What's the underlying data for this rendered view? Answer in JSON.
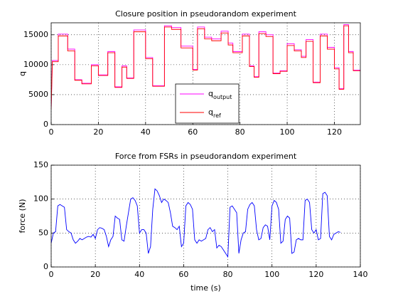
{
  "chart_data": [
    {
      "type": "line",
      "title": "Closure position in pseudorandom experiment",
      "ylabel": "q",
      "x": [
        0,
        0.5,
        3,
        3,
        7,
        7,
        10,
        10,
        13,
        13,
        17,
        17,
        20,
        20,
        24,
        24,
        27,
        27,
        30,
        30,
        32,
        32,
        35,
        35,
        40,
        40,
        43,
        43,
        48,
        48,
        51,
        51,
        55,
        55,
        60,
        60,
        62,
        62,
        65,
        65,
        68,
        68,
        72,
        72,
        75,
        75,
        77,
        77,
        81,
        81,
        84,
        84,
        86,
        86,
        88,
        88,
        91,
        91,
        94,
        94,
        97,
        97,
        100,
        100,
        103,
        103,
        106,
        106,
        108,
        108,
        111,
        111,
        114,
        114,
        117,
        117,
        120,
        120,
        122,
        122,
        124,
        124,
        126,
        126,
        128,
        128,
        131
      ],
      "series": [
        {
          "name": "q",
          "subscript": "output",
          "color": "#ff00ff",
          "values": [
            2500,
            10700,
            10700,
            15100,
            15100,
            12600,
            12600,
            7500,
            7500,
            6900,
            6900,
            10000,
            10000,
            8300,
            8300,
            12200,
            12200,
            6300,
            6300,
            9800,
            9800,
            7800,
            7800,
            15800,
            15800,
            11200,
            11200,
            6500,
            6500,
            16500,
            16500,
            16200,
            16200,
            13100,
            13100,
            9200,
            9200,
            16300,
            16300,
            14600,
            14600,
            14300,
            14300,
            15600,
            15600,
            13600,
            13600,
            12200,
            12200,
            15100,
            15100,
            9800,
            9800,
            8000,
            8000,
            15500,
            15500,
            15000,
            15000,
            8600,
            8600,
            9000,
            9000,
            13500,
            13500,
            12500,
            12500,
            11400,
            11400,
            14200,
            14200,
            7100,
            7100,
            15100,
            15100,
            12900,
            12900,
            9500,
            9500,
            6000,
            6000,
            16700,
            16700,
            12200,
            12200,
            9100,
            9100
          ]
        },
        {
          "name": "q",
          "subscript": "ref",
          "color": "#ff0000",
          "values": [
            2500,
            10500,
            10500,
            14800,
            14800,
            12300,
            12300,
            7400,
            7400,
            6800,
            6800,
            9800,
            9800,
            8200,
            8200,
            12000,
            12000,
            6200,
            6200,
            9600,
            9600,
            7700,
            7700,
            15500,
            15500,
            11000,
            11000,
            6400,
            6400,
            16300,
            16300,
            15900,
            15900,
            12800,
            12800,
            9100,
            9100,
            16000,
            16000,
            14300,
            14300,
            14000,
            14000,
            15300,
            15300,
            13300,
            13300,
            12000,
            12000,
            14800,
            14800,
            9700,
            9700,
            7900,
            7900,
            15200,
            15200,
            14700,
            14700,
            8500,
            8500,
            8900,
            8900,
            13200,
            13200,
            12300,
            12300,
            11200,
            11200,
            13900,
            13900,
            7000,
            7000,
            14800,
            14800,
            12600,
            12600,
            9300,
            9300,
            5900,
            5900,
            16500,
            16500,
            12000,
            12000,
            9000,
            9000
          ]
        }
      ],
      "xlim": [
        0,
        131
      ],
      "xticks": [
        0,
        20,
        40,
        60,
        80,
        100,
        120
      ],
      "ylim": [
        0,
        17000
      ],
      "yticks": [
        0,
        5000,
        10000,
        15000
      ],
      "grid": true,
      "legend": "lower center"
    },
    {
      "type": "line",
      "title": "Force from FSRs in pseudorandom experiment",
      "ylabel": "force (N)",
      "xlabel": "time (s)",
      "x": [
        0,
        1,
        2,
        3,
        4,
        5,
        6,
        7,
        8,
        9,
        10,
        11,
        12,
        13,
        14,
        15,
        16,
        17,
        18,
        19,
        20,
        21,
        22,
        23,
        24,
        25,
        26,
        27,
        28,
        29,
        30,
        31,
        32,
        33,
        34,
        35,
        36,
        37,
        38,
        39,
        40,
        41,
        42,
        43,
        44,
        45,
        46,
        47,
        48,
        49,
        50,
        51,
        52,
        53,
        54,
        55,
        56,
        57,
        58,
        59,
        60,
        61,
        62,
        63,
        64,
        65,
        66,
        67,
        68,
        69,
        70,
        71,
        72,
        73,
        74,
        75,
        76,
        77,
        78,
        79,
        80,
        81,
        82,
        83,
        84,
        85,
        86,
        87,
        88,
        89,
        90,
        91,
        92,
        93,
        94,
        95,
        96,
        97,
        98,
        99,
        100,
        101,
        102,
        103,
        104,
        105,
        106,
        107,
        108,
        109,
        110,
        111,
        112,
        113,
        114,
        115,
        116,
        117,
        118,
        119,
        120,
        121,
        122,
        123,
        124,
        125,
        126,
        127,
        128,
        129,
        130,
        131
      ],
      "series": [
        {
          "name": "force",
          "color": "#0000ff",
          "values": [
            35,
            50,
            52,
            90,
            92,
            90,
            88,
            55,
            52,
            50,
            40,
            35,
            38,
            42,
            40,
            42,
            44,
            45,
            44,
            48,
            42,
            55,
            58,
            57,
            55,
            45,
            30,
            40,
            45,
            75,
            72,
            70,
            40,
            38,
            60,
            80,
            100,
            102,
            98,
            90,
            50,
            55,
            55,
            50,
            20,
            30,
            85,
            115,
            112,
            105,
            95,
            100,
            98,
            95,
            80,
            60,
            58,
            55,
            60,
            30,
            35,
            90,
            95,
            92,
            85,
            40,
            35,
            40,
            38,
            40,
            42,
            55,
            58,
            52,
            55,
            28,
            32,
            30,
            25,
            20,
            15,
            88,
            90,
            85,
            80,
            20,
            40,
            50,
            52,
            85,
            92,
            95,
            90,
            55,
            40,
            42,
            58,
            62,
            60,
            40,
            90,
            98,
            95,
            85,
            35,
            38,
            70,
            75,
            72,
            20,
            22,
            40,
            42,
            40,
            40,
            98,
            100,
            95,
            55,
            50,
            55,
            40,
            42,
            108,
            110,
            105,
            45,
            40,
            48,
            50,
            52,
            51
          ]
        }
      ],
      "xlim": [
        0,
        140
      ],
      "xticks": [
        0,
        20,
        40,
        60,
        80,
        100,
        120,
        140
      ],
      "ylim": [
        0,
        150
      ],
      "yticks": [
        0,
        50,
        100,
        150
      ],
      "grid": true
    }
  ]
}
